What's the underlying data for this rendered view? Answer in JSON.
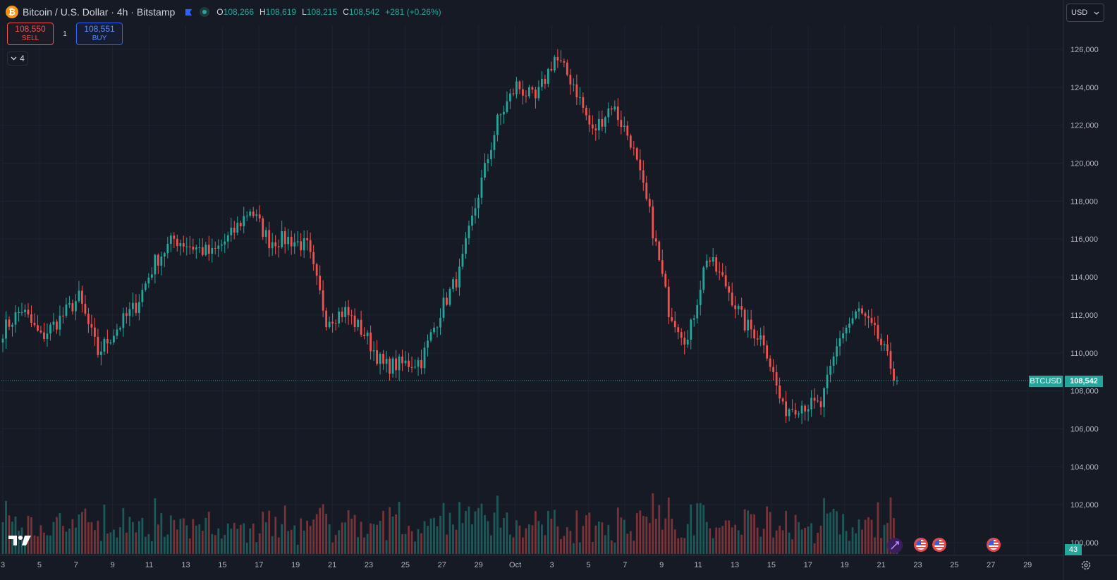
{
  "header": {
    "title": "Bitcoin / U.S. Dollar · 4h · Bitstamp",
    "open_label": "O",
    "open": "108,266",
    "high_label": "H",
    "high": "108,619",
    "low_label": "L",
    "low": "108,215",
    "close_label": "C",
    "close": "108,542",
    "change": "+281 (+0.26%)"
  },
  "trade": {
    "sell_price": "108,550",
    "sell_label": "SELL",
    "spread": "1",
    "buy_price": "108,551",
    "buy_label": "BUY"
  },
  "indicators_toggle": {
    "count": "4"
  },
  "currency": "USD",
  "price_scale": {
    "last_price": "108,542",
    "symbol": "BTCUSD",
    "countdown": "43"
  },
  "colors": {
    "up": "#26a69a",
    "down": "#ef5350",
    "background": "#161a25",
    "grid": "#1f2330"
  },
  "icons": [
    "bitcoin-logo-icon",
    "flag-icon",
    "live-dot-icon",
    "chevron-down-icon",
    "gear-icon",
    "tradingview-logo-icon",
    "us-flag-icon",
    "spark-icon"
  ],
  "chart_data": {
    "type": "candlestick",
    "symbol": "BTCUSD",
    "interval": "4h",
    "y_ticks": [
      100000,
      102000,
      104000,
      106000,
      108000,
      110000,
      112000,
      114000,
      116000,
      118000,
      120000,
      122000,
      124000,
      126000
    ],
    "y_tick_labels": [
      "100,000",
      "102,000",
      "104,000",
      "106,000",
      "108,000",
      "110,000",
      "112,000",
      "114,000",
      "116,000",
      "118,000",
      "120,000",
      "122,000",
      "124,000",
      "126,000"
    ],
    "ylim": [
      99500,
      127000
    ],
    "x_tick_labels": [
      "3",
      "5",
      "7",
      "9",
      "11",
      "13",
      "15",
      "17",
      "19",
      "21",
      "23",
      "25",
      "27",
      "29",
      "Oct",
      "3",
      "5",
      "7",
      "9",
      "11",
      "13",
      "15",
      "17",
      "19",
      "21",
      "23",
      "25",
      "27",
      "29"
    ],
    "dates": [
      "Sep 3",
      "Sep 5",
      "Sep 7",
      "Sep 9",
      "Sep 11",
      "Sep 13",
      "Sep 15",
      "Sep 17",
      "Sep 19",
      "Sep 21",
      "Sep 23",
      "Sep 25",
      "Sep 27",
      "Sep 29",
      "Oct 1",
      "Oct 3",
      "Oct 5",
      "Oct 7",
      "Oct 9",
      "Oct 11",
      "Oct 13",
      "Oct 15",
      "Oct 17",
      "Oct 19",
      "Oct 21"
    ],
    "close_path": [
      111200,
      112300,
      110800,
      111800,
      112900,
      110000,
      111300,
      112500,
      114800,
      116000,
      115600,
      115200,
      116200,
      117600,
      115900,
      116000,
      115600,
      111800,
      112200,
      111000,
      109300,
      109400,
      109600,
      112200,
      114200,
      118400,
      122200,
      124100,
      123300,
      125600,
      124200,
      121600,
      123100,
      121200,
      117300,
      112300,
      110600,
      115100,
      113600,
      111500,
      110700,
      107000,
      107300,
      107200,
      110900,
      112200,
      110800,
      108542
    ],
    "volume_axis": "relative",
    "last_price": 108542,
    "series": [
      {
        "name": "BTCUSD",
        "up_color": "#26a69a",
        "down_color": "#ef5350"
      }
    ]
  }
}
